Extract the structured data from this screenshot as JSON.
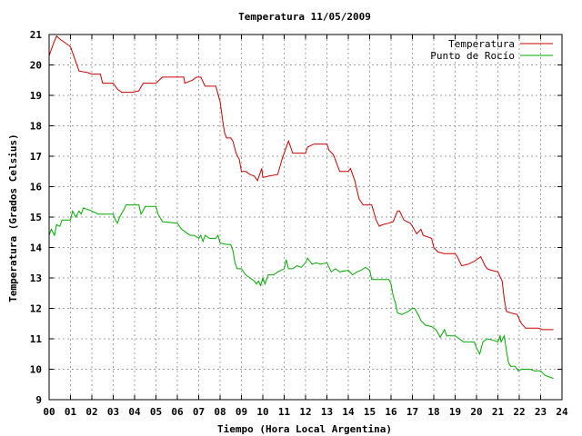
{
  "chart_data": {
    "type": "line",
    "title": "Temperatura 11/05/2009",
    "xlabel": "Tiempo (Hora Local Argentina)",
    "ylabel": "Temperatura (Grados Celsius)",
    "xlim": [
      0,
      24
    ],
    "ylim": [
      9,
      21
    ],
    "x_ticks": [
      "00",
      "01",
      "02",
      "03",
      "04",
      "05",
      "06",
      "07",
      "08",
      "09",
      "10",
      "11",
      "12",
      "13",
      "14",
      "15",
      "16",
      "17",
      "18",
      "19",
      "20",
      "21",
      "22",
      "23",
      "24"
    ],
    "y_ticks": [
      "9",
      "10",
      "11",
      "12",
      "13",
      "14",
      "15",
      "16",
      "17",
      "18",
      "19",
      "20",
      "21"
    ],
    "grid": true,
    "legend_position": "top-right",
    "series": [
      {
        "name": "Temperatura",
        "color": "#cc0000",
        "points": [
          [
            0.0,
            20.3
          ],
          [
            0.2,
            20.7
          ],
          [
            0.35,
            20.95
          ],
          [
            0.5,
            20.85
          ],
          [
            0.7,
            20.75
          ],
          [
            1.0,
            20.6
          ],
          [
            1.2,
            20.2
          ],
          [
            1.4,
            19.8
          ],
          [
            1.8,
            19.75
          ],
          [
            2.0,
            19.7
          ],
          [
            2.4,
            19.7
          ],
          [
            2.5,
            19.4
          ],
          [
            3.0,
            19.4
          ],
          [
            3.2,
            19.2
          ],
          [
            3.4,
            19.1
          ],
          [
            3.9,
            19.1
          ],
          [
            4.2,
            19.15
          ],
          [
            4.4,
            19.4
          ],
          [
            5.0,
            19.4
          ],
          [
            5.3,
            19.6
          ],
          [
            6.0,
            19.6
          ],
          [
            6.3,
            19.6
          ],
          [
            6.35,
            19.4
          ],
          [
            6.7,
            19.5
          ],
          [
            6.9,
            19.6
          ],
          [
            7.1,
            19.6
          ],
          [
            7.3,
            19.3
          ],
          [
            7.8,
            19.3
          ],
          [
            8.0,
            18.8
          ],
          [
            8.1,
            18.3
          ],
          [
            8.2,
            17.8
          ],
          [
            8.3,
            17.6
          ],
          [
            8.5,
            17.6
          ],
          [
            8.6,
            17.5
          ],
          [
            8.75,
            17.1
          ],
          [
            8.9,
            16.9
          ],
          [
            9.0,
            16.5
          ],
          [
            9.2,
            16.5
          ],
          [
            9.4,
            16.4
          ],
          [
            9.6,
            16.35
          ],
          [
            9.75,
            16.2
          ],
          [
            9.85,
            16.4
          ],
          [
            9.95,
            16.6
          ],
          [
            10.0,
            16.3
          ],
          [
            10.3,
            16.35
          ],
          [
            10.7,
            16.4
          ],
          [
            10.9,
            16.9
          ],
          [
            11.1,
            17.3
          ],
          [
            11.2,
            17.5
          ],
          [
            11.3,
            17.3
          ],
          [
            11.4,
            17.1
          ],
          [
            12.0,
            17.1
          ],
          [
            12.1,
            17.3
          ],
          [
            12.4,
            17.4
          ],
          [
            13.0,
            17.4
          ],
          [
            13.1,
            17.2
          ],
          [
            13.3,
            17.05
          ],
          [
            13.6,
            16.5
          ],
          [
            14.0,
            16.5
          ],
          [
            14.1,
            16.6
          ],
          [
            14.3,
            16.2
          ],
          [
            14.5,
            15.6
          ],
          [
            14.7,
            15.4
          ],
          [
            15.1,
            15.4
          ],
          [
            15.3,
            14.9
          ],
          [
            15.45,
            14.7
          ],
          [
            15.6,
            14.75
          ],
          [
            15.9,
            14.8
          ],
          [
            16.1,
            14.85
          ],
          [
            16.3,
            15.2
          ],
          [
            16.4,
            15.2
          ],
          [
            16.6,
            14.9
          ],
          [
            16.9,
            14.8
          ],
          [
            17.0,
            14.7
          ],
          [
            17.2,
            14.45
          ],
          [
            17.4,
            14.6
          ],
          [
            17.5,
            14.4
          ],
          [
            17.9,
            14.3
          ],
          [
            18.0,
            14.0
          ],
          [
            18.2,
            13.85
          ],
          [
            18.5,
            13.8
          ],
          [
            19.0,
            13.8
          ],
          [
            19.1,
            13.7
          ],
          [
            19.3,
            13.4
          ],
          [
            19.6,
            13.45
          ],
          [
            19.9,
            13.55
          ],
          [
            20.2,
            13.7
          ],
          [
            20.4,
            13.4
          ],
          [
            20.5,
            13.3
          ],
          [
            20.7,
            13.25
          ],
          [
            21.0,
            13.2
          ],
          [
            21.2,
            12.9
          ],
          [
            21.3,
            12.3
          ],
          [
            21.4,
            11.9
          ],
          [
            21.6,
            11.85
          ],
          [
            21.9,
            11.8
          ],
          [
            22.1,
            11.5
          ],
          [
            22.3,
            11.35
          ],
          [
            22.9,
            11.35
          ],
          [
            23.1,
            11.3
          ],
          [
            23.6,
            11.3
          ]
        ]
      },
      {
        "name": "Punto de Rocío",
        "color": "#00aa00",
        "points": [
          [
            0.0,
            14.4
          ],
          [
            0.1,
            14.6
          ],
          [
            0.25,
            14.4
          ],
          [
            0.35,
            14.75
          ],
          [
            0.5,
            14.7
          ],
          [
            0.6,
            14.9
          ],
          [
            1.0,
            14.9
          ],
          [
            1.1,
            15.2
          ],
          [
            1.25,
            15.0
          ],
          [
            1.4,
            15.2
          ],
          [
            1.5,
            15.1
          ],
          [
            1.6,
            15.3
          ],
          [
            2.0,
            15.2
          ],
          [
            2.3,
            15.1
          ],
          [
            2.6,
            15.1
          ],
          [
            3.0,
            15.1
          ],
          [
            3.1,
            14.9
          ],
          [
            3.2,
            14.8
          ],
          [
            3.3,
            15.0
          ],
          [
            3.5,
            15.25
          ],
          [
            3.6,
            15.4
          ],
          [
            4.2,
            15.4
          ],
          [
            4.3,
            15.1
          ],
          [
            4.5,
            15.35
          ],
          [
            5.0,
            15.35
          ],
          [
            5.1,
            15.1
          ],
          [
            5.3,
            14.85
          ],
          [
            6.0,
            14.8
          ],
          [
            6.2,
            14.6
          ],
          [
            6.4,
            14.5
          ],
          [
            6.6,
            14.4
          ],
          [
            6.8,
            14.4
          ],
          [
            7.0,
            14.3
          ],
          [
            7.1,
            14.4
          ],
          [
            7.2,
            14.2
          ],
          [
            7.3,
            14.4
          ],
          [
            7.5,
            14.3
          ],
          [
            7.8,
            14.3
          ],
          [
            7.9,
            14.4
          ],
          [
            8.0,
            14.15
          ],
          [
            8.3,
            14.1
          ],
          [
            8.5,
            14.1
          ],
          [
            8.6,
            13.9
          ],
          [
            8.7,
            13.5
          ],
          [
            8.8,
            13.3
          ],
          [
            9.0,
            13.3
          ],
          [
            9.2,
            13.1
          ],
          [
            9.4,
            13.0
          ],
          [
            9.6,
            12.9
          ],
          [
            9.7,
            12.8
          ],
          [
            9.8,
            12.9
          ],
          [
            9.9,
            12.75
          ],
          [
            10.0,
            13.0
          ],
          [
            10.1,
            12.8
          ],
          [
            10.25,
            13.1
          ],
          [
            10.5,
            13.1
          ],
          [
            10.7,
            13.2
          ],
          [
            11.0,
            13.3
          ],
          [
            11.1,
            13.6
          ],
          [
            11.2,
            13.3
          ],
          [
            11.4,
            13.3
          ],
          [
            11.6,
            13.4
          ],
          [
            11.8,
            13.35
          ],
          [
            12.0,
            13.5
          ],
          [
            12.1,
            13.65
          ],
          [
            12.3,
            13.45
          ],
          [
            12.5,
            13.5
          ],
          [
            12.7,
            13.45
          ],
          [
            13.0,
            13.5
          ],
          [
            13.2,
            13.2
          ],
          [
            13.4,
            13.3
          ],
          [
            13.6,
            13.2
          ],
          [
            14.0,
            13.25
          ],
          [
            14.2,
            13.1
          ],
          [
            14.4,
            13.2
          ],
          [
            14.6,
            13.25
          ],
          [
            14.8,
            13.35
          ],
          [
            15.0,
            13.25
          ],
          [
            15.1,
            12.95
          ],
          [
            15.9,
            12.95
          ],
          [
            16.0,
            12.8
          ],
          [
            16.1,
            12.4
          ],
          [
            16.2,
            12.2
          ],
          [
            16.3,
            11.85
          ],
          [
            16.5,
            11.8
          ],
          [
            16.8,
            11.9
          ],
          [
            17.0,
            12.0
          ],
          [
            17.1,
            12.0
          ],
          [
            17.3,
            11.75
          ],
          [
            17.4,
            11.6
          ],
          [
            17.6,
            11.45
          ],
          [
            17.9,
            11.4
          ],
          [
            18.1,
            11.3
          ],
          [
            18.3,
            11.05
          ],
          [
            18.5,
            11.3
          ],
          [
            18.6,
            11.1
          ],
          [
            19.0,
            11.1
          ],
          [
            19.2,
            11.0
          ],
          [
            19.4,
            10.9
          ],
          [
            19.9,
            10.9
          ],
          [
            20.0,
            10.7
          ],
          [
            20.15,
            10.5
          ],
          [
            20.3,
            10.9
          ],
          [
            20.5,
            11.0
          ],
          [
            20.8,
            10.95
          ],
          [
            21.0,
            10.9
          ],
          [
            21.1,
            11.1
          ],
          [
            21.15,
            10.9
          ],
          [
            21.3,
            11.1
          ],
          [
            21.4,
            10.6
          ],
          [
            21.5,
            10.2
          ],
          [
            21.6,
            10.1
          ],
          [
            21.8,
            10.1
          ],
          [
            21.95,
            9.95
          ],
          [
            22.1,
            10.0
          ],
          [
            22.5,
            10.0
          ],
          [
            22.7,
            9.95
          ],
          [
            23.0,
            9.95
          ],
          [
            23.2,
            9.8
          ],
          [
            23.4,
            9.75
          ],
          [
            23.6,
            9.7
          ]
        ]
      }
    ]
  }
}
